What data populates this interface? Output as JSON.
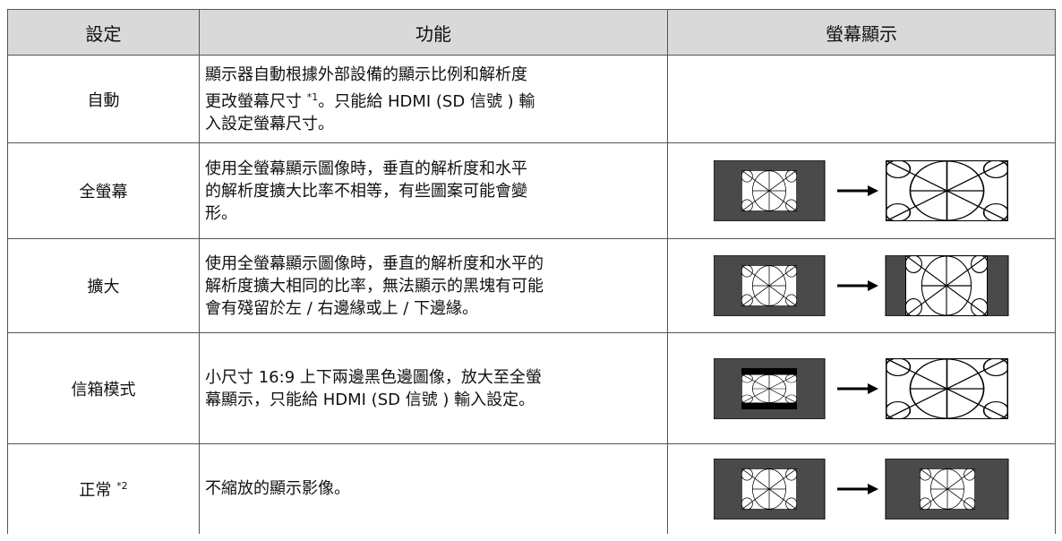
{
  "table": {
    "header": [
      "設定",
      "功能",
      "螢幕顯示"
    ],
    "rows": [
      {
        "setting": "自動",
        "function": [
          "顯示器自動根據外部設備的顯示比例和解析度",
          "更改螢幕尺寸 ",
          "*1",
          "。只能給 HDMI (SD 信號 ) 輸",
          "入設定螢幕尺寸。"
        ]
      },
      {
        "setting": "全螢幕",
        "function": [
          "使用全螢幕顯示圖像時，垂直的解析度和水平",
          "的解析度擴大比率不相等，有些圖案可能會變",
          "形。"
        ]
      },
      {
        "setting": "擴大",
        "function": [
          "使用全螢幕顯示圖像時，垂直的解析度和水平的",
          "解析度擴大相同的比率，無法顯示的黑塊有可能",
          "會有殘留於左 / 右邊緣或上 / 下邊緣。"
        ]
      },
      {
        "setting": "信箱模式",
        "function": [
          "小尺寸 16:9 上下兩邊黑色邊圖像，放大至全螢",
          "幕顯示，只能給 HDMI (SD 信號 ) 輸入設定。"
        ]
      },
      {
        "setting": "正常 ",
        "note": "*2",
        "function": [
          "不縮放的顯示影像。"
        ]
      }
    ]
  }
}
